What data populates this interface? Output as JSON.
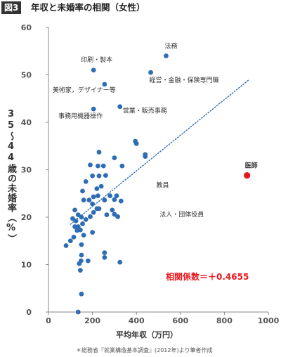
{
  "header": {
    "badge": "図3",
    "title": "年収と未婚率の相関（女性）"
  },
  "chart_data": {
    "type": "scatter",
    "title": "年収と未婚率の相関（女性）",
    "xlabel": "平均年収（万円）",
    "ylabel": "35〜44歳の未婚率（%）",
    "xlim": [
      0,
      1000
    ],
    "ylim": [
      0,
      60
    ],
    "xticks": [
      "0",
      "200",
      "400",
      "600",
      "800",
      "1000"
    ],
    "yticks": [
      "0",
      "10",
      "20",
      "30",
      "40",
      "50",
      "60"
    ],
    "grid": false,
    "series": [
      {
        "points": [
          [
            135,
            0
          ],
          [
            150,
            3.8
          ],
          [
            145,
            8.8
          ],
          [
            140,
            10.2
          ],
          [
            148,
            10.8
          ],
          [
            150,
            12
          ],
          [
            180,
            10.8
          ],
          [
            80,
            14
          ],
          [
            100,
            15
          ],
          [
            115,
            15.8
          ],
          [
            150,
            14.2
          ],
          [
            160,
            16.2
          ],
          [
            200,
            16.8
          ],
          [
            255,
            11.5
          ],
          [
            255,
            12.5
          ],
          [
            325,
            10.5
          ],
          [
            120,
            18
          ],
          [
            130,
            17.2
          ],
          [
            135,
            18
          ],
          [
            145,
            17.3
          ],
          [
            155,
            18.6
          ],
          [
            125,
            19.2
          ],
          [
            110,
            19.7
          ],
          [
            120,
            21.5
          ],
          [
            135,
            20.5
          ],
          [
            150,
            20
          ],
          [
            170,
            19.5
          ],
          [
            190,
            20.1
          ],
          [
            205,
            21
          ],
          [
            220,
            21.8
          ],
          [
            200,
            22.8
          ],
          [
            230,
            21.8
          ],
          [
            265,
            20.5
          ],
          [
            290,
            21.5
          ],
          [
            300,
            20.6
          ],
          [
            315,
            20.1
          ],
          [
            160,
            23.6
          ],
          [
            185,
            23.6
          ],
          [
            205,
            24.3
          ],
          [
            225,
            24.5
          ],
          [
            255,
            23.6
          ],
          [
            280,
            24.5
          ],
          [
            300,
            23.7
          ],
          [
            310,
            24.5
          ],
          [
            330,
            23.4
          ],
          [
            155,
            25.5
          ],
          [
            220,
            26
          ],
          [
            240,
            26.5
          ],
          [
            170,
            27.5
          ],
          [
            200,
            28.7
          ],
          [
            230,
            28.7
          ],
          [
            260,
            28.8
          ],
          [
            190,
            31
          ],
          [
            225,
            30.8
          ],
          [
            250,
            30.8
          ],
          [
            335,
            30.8
          ],
          [
            230,
            33.7
          ],
          [
            300,
            32.5
          ],
          [
            395,
            36
          ],
          [
            400,
            35.5
          ],
          [
            440,
            32.8
          ],
          [
            440,
            33.2
          ],
          [
            205,
            42.8
          ],
          [
            325,
            43.3
          ],
          [
            205,
            51
          ],
          [
            255,
            48
          ],
          [
            465,
            50.5
          ],
          [
            535,
            54
          ]
        ]
      },
      {
        "name": "医師",
        "highlight": true,
        "points": [
          [
            903,
            28.8
          ]
        ],
        "color": "#e8161c"
      }
    ],
    "trendline": {
      "from": [
        100,
        18.5
      ],
      "to": [
        910,
        48.9
      ],
      "style": "dotted",
      "color": "#2e6db5"
    },
    "point_color": "#2e6db5",
    "annotations": [
      {
        "label": "法務",
        "x": 535,
        "y": 54
      },
      {
        "label": "印刷・製本",
        "x": 205,
        "y": 51
      },
      {
        "label": "経営・金融・保険専門職",
        "x": 465,
        "y": 50.5
      },
      {
        "label": "美術家，デザイナー等",
        "x": 255,
        "y": 48
      },
      {
        "label": "営業・販売事務",
        "x": 325,
        "y": 43.3
      },
      {
        "label": "事務用機器操作",
        "x": 205,
        "y": 42.8
      },
      {
        "label": "医師",
        "x": 903,
        "y": 28.8,
        "color": "#e8161c"
      },
      {
        "label": "教員",
        "x": 465,
        "y": 26
      },
      {
        "label": "法人・団体役員",
        "x": 480,
        "y": 21.5
      }
    ],
    "correlation_text": "相関係数＝＋0.4655",
    "correlation_color": "#e8161c"
  },
  "axis_titles": {
    "y_line1": "35",
    "y_line2": "〜",
    "y_line3": "44",
    "y_rest": "歳の未婚率（%）",
    "x": "平均年収（万円）"
  },
  "note": "＊総務省『就業構造基本調査』(2012年)より筆者作成"
}
